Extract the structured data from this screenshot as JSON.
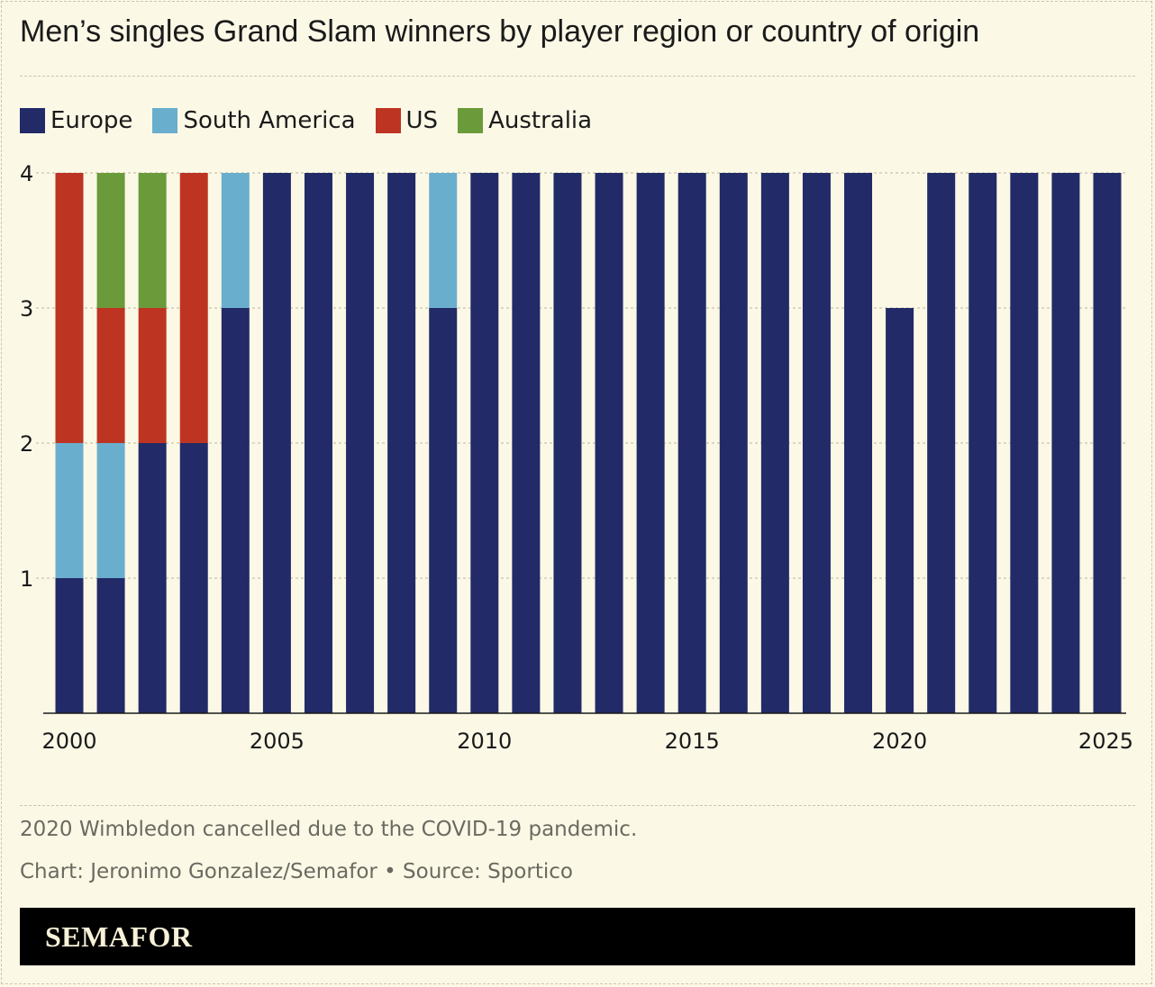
{
  "title": "Men’s singles Grand Slam winners by player region or country of origin",
  "legend": [
    {
      "label": "Europe",
      "color": "#222a67"
    },
    {
      "label": "South America",
      "color": "#6aaecd"
    },
    {
      "label": "US",
      "color": "#be3423"
    },
    {
      "label": "Australia",
      "color": "#6b9a3a"
    }
  ],
  "note": "2020 Wimbledon cancelled due to the COVID-19 pandemic.",
  "credit": "Chart: Jeronimo Gonzalez/Semafor • Source: Sportico",
  "brand": "SEMAFOR",
  "chart_data": {
    "type": "bar",
    "stacked": true,
    "title": "Men’s singles Grand Slam winners by player region or country of origin",
    "xlabel": "",
    "ylabel": "",
    "ylim": [
      0,
      4
    ],
    "yticks": [
      "1",
      "2",
      "3",
      "4"
    ],
    "xticks": [
      "2000",
      "2005",
      "2010",
      "2015",
      "2020",
      "2025"
    ],
    "grid": true,
    "legend_position": "top-left",
    "categories": [
      2000,
      2001,
      2002,
      2003,
      2004,
      2005,
      2006,
      2007,
      2008,
      2009,
      2010,
      2011,
      2012,
      2013,
      2014,
      2015,
      2016,
      2017,
      2018,
      2019,
      2020,
      2021,
      2022,
      2023,
      2024,
      2025
    ],
    "series": [
      {
        "name": "Europe",
        "color": "#222a67",
        "values": [
          1,
          1,
          2,
          2,
          3,
          4,
          4,
          4,
          4,
          3,
          4,
          4,
          4,
          4,
          4,
          4,
          4,
          4,
          4,
          4,
          3,
          4,
          4,
          4,
          4,
          4
        ]
      },
      {
        "name": "South America",
        "color": "#6aaecd",
        "values": [
          1,
          1,
          0,
          0,
          1,
          0,
          0,
          0,
          0,
          1,
          0,
          0,
          0,
          0,
          0,
          0,
          0,
          0,
          0,
          0,
          0,
          0,
          0,
          0,
          0,
          0
        ]
      },
      {
        "name": "US",
        "color": "#be3423",
        "values": [
          2,
          1,
          1,
          2,
          0,
          0,
          0,
          0,
          0,
          0,
          0,
          0,
          0,
          0,
          0,
          0,
          0,
          0,
          0,
          0,
          0,
          0,
          0,
          0,
          0,
          0
        ]
      },
      {
        "name": "Australia",
        "color": "#6b9a3a",
        "values": [
          0,
          1,
          1,
          0,
          0,
          0,
          0,
          0,
          0,
          0,
          0,
          0,
          0,
          0,
          0,
          0,
          0,
          0,
          0,
          0,
          0,
          0,
          0,
          0,
          0,
          0
        ]
      }
    ]
  }
}
